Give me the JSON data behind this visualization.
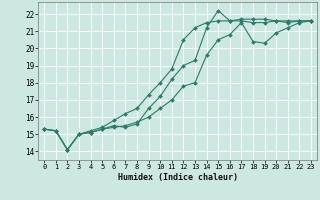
{
  "xlabel": "Humidex (Indice chaleur)",
  "bg_color": "#cce8e0",
  "grid_color": "#ffffff",
  "line_color": "#2d7a6a",
  "xlim": [
    -0.5,
    23.5
  ],
  "ylim": [
    13.5,
    22.7
  ],
  "xticks": [
    0,
    1,
    2,
    3,
    4,
    5,
    6,
    7,
    8,
    9,
    10,
    11,
    12,
    13,
    14,
    15,
    16,
    17,
    18,
    19,
    20,
    21,
    22,
    23
  ],
  "yticks": [
    14,
    15,
    16,
    17,
    18,
    19,
    20,
    21,
    22
  ],
  "line1_x": [
    0,
    1,
    2,
    3,
    4,
    5,
    6,
    7,
    8,
    9,
    10,
    11,
    12,
    13,
    14,
    15,
    16,
    17,
    18,
    19,
    20,
    21,
    22,
    23
  ],
  "line1_y": [
    15.3,
    15.2,
    14.1,
    15.0,
    15.1,
    15.3,
    15.5,
    15.4,
    15.6,
    16.5,
    17.2,
    18.2,
    19.0,
    19.3,
    21.2,
    22.2,
    21.6,
    21.7,
    21.7,
    21.7,
    21.6,
    21.5,
    21.6,
    21.6
  ],
  "line2_x": [
    0,
    1,
    2,
    3,
    4,
    5,
    6,
    7,
    8,
    9,
    10,
    11,
    12,
    13,
    14,
    15,
    16,
    17,
    18,
    19,
    20,
    21,
    22,
    23
  ],
  "line2_y": [
    15.3,
    15.2,
    14.1,
    15.0,
    15.2,
    15.4,
    15.8,
    16.2,
    16.5,
    17.3,
    18.0,
    18.8,
    20.5,
    21.2,
    21.5,
    21.6,
    21.6,
    21.6,
    21.5,
    21.5,
    21.6,
    21.6,
    21.6,
    21.6
  ],
  "line3_x": [
    0,
    1,
    2,
    3,
    4,
    5,
    6,
    7,
    8,
    9,
    10,
    11,
    12,
    13,
    14,
    15,
    16,
    17,
    18,
    19,
    20,
    21,
    22,
    23
  ],
  "line3_y": [
    15.3,
    15.2,
    14.1,
    15.0,
    15.1,
    15.3,
    15.4,
    15.5,
    15.7,
    16.0,
    16.5,
    17.0,
    17.8,
    18.0,
    19.6,
    20.5,
    20.8,
    21.5,
    20.4,
    20.3,
    20.9,
    21.2,
    21.5,
    21.6
  ]
}
